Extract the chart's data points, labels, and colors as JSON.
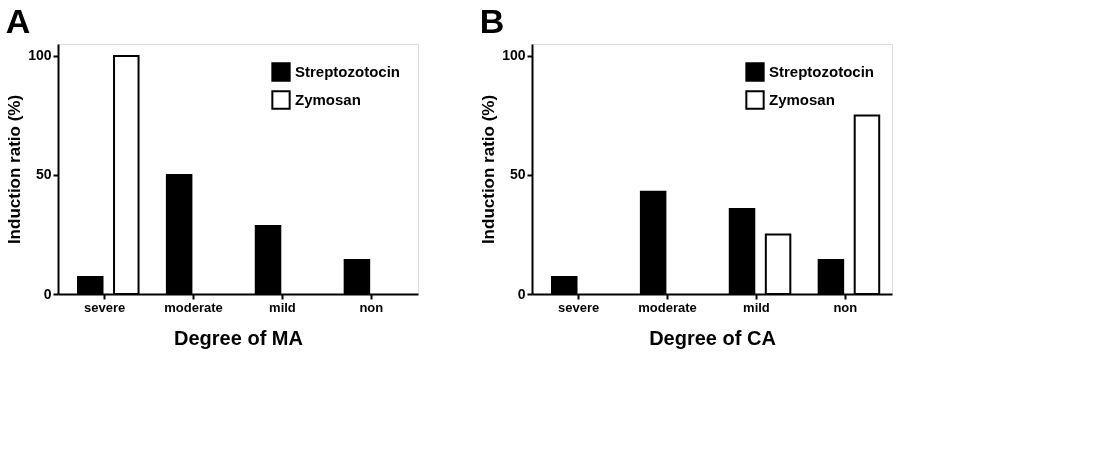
{
  "chart_data": [
    {
      "type": "bar",
      "title": "A",
      "xlabel": "Degree of MA",
      "ylabel": "Induction ratio (%)",
      "categories": [
        "severe",
        "moderate",
        "mild",
        "non"
      ],
      "series": [
        {
          "name": "Streptozotocin",
          "color": "#000000",
          "values": [
            7.1,
            50,
            28.6,
            14.3
          ]
        },
        {
          "name": "Zymosan",
          "color": "#ffffff",
          "values": [
            100,
            null,
            null,
            null
          ]
        }
      ],
      "ylim": [
        0,
        105
      ],
      "yticks": [
        0,
        50,
        100
      ],
      "grid": false,
      "legend": "top right"
    },
    {
      "type": "bar",
      "title": "B",
      "xlabel": "Degree of CA",
      "ylabel": "Induction ratio (%)",
      "categories": [
        "severe",
        "moderate",
        "mild",
        "non"
      ],
      "series": [
        {
          "name": "Streptozotocin",
          "color": "#000000",
          "values": [
            7.1,
            42.9,
            35.7,
            14.3
          ]
        },
        {
          "name": "Zymosan",
          "color": "#ffffff",
          "values": [
            null,
            null,
            25,
            75
          ]
        }
      ],
      "ylim": [
        0,
        105
      ],
      "yticks": [
        0,
        50,
        100
      ],
      "grid": false,
      "legend": "top right"
    }
  ]
}
